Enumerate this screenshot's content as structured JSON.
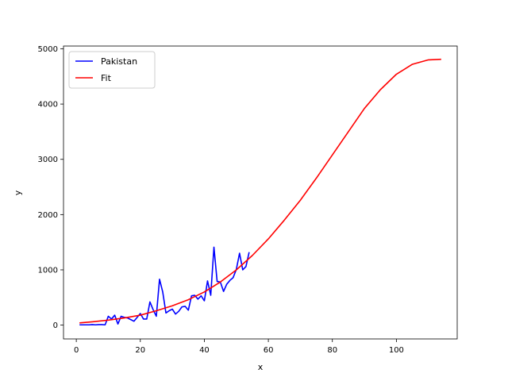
{
  "chart_data": {
    "type": "line",
    "title": "",
    "xlabel": "x",
    "ylabel": "y",
    "xlim": [
      -4,
      119
    ],
    "ylim": [
      -250,
      5050
    ],
    "xticks": [
      0,
      20,
      40,
      60,
      80,
      100
    ],
    "yticks": [
      0,
      1000,
      2000,
      3000,
      4000,
      5000
    ],
    "grid": false,
    "legend_position": "top-left",
    "series": [
      {
        "name": "Pakistan",
        "color": "#0000ff",
        "x": [
          1,
          2,
          3,
          4,
          5,
          6,
          7,
          8,
          9,
          10,
          11,
          12,
          13,
          14,
          15,
          16,
          17,
          18,
          19,
          20,
          21,
          22,
          23,
          24,
          25,
          26,
          27,
          28,
          29,
          30,
          31,
          32,
          33,
          34,
          35,
          36,
          37,
          38,
          39,
          40,
          41,
          42,
          43,
          44,
          45,
          46,
          47,
          48,
          49,
          50,
          51,
          52,
          53,
          54
        ],
        "y": [
          5,
          5,
          5,
          5,
          10,
          5,
          10,
          10,
          5,
          160,
          110,
          180,
          20,
          160,
          140,
          130,
          100,
          70,
          140,
          210,
          110,
          110,
          420,
          280,
          160,
          830,
          600,
          220,
          260,
          290,
          200,
          250,
          330,
          340,
          270,
          530,
          540,
          470,
          530,
          440,
          800,
          540,
          1410,
          790,
          780,
          610,
          740,
          810,
          860,
          1010,
          1300,
          1000,
          1060,
          1320
        ]
      },
      {
        "name": "Fit",
        "color": "#ff0000",
        "x": [
          1,
          5,
          10,
          15,
          20,
          25,
          30,
          35,
          40,
          45,
          50,
          55,
          60,
          65,
          70,
          75,
          80,
          85,
          90,
          95,
          100,
          105,
          110,
          114
        ],
        "y": [
          40,
          60,
          90,
          130,
          180,
          260,
          350,
          460,
          600,
          780,
          1000,
          1260,
          1560,
          1900,
          2260,
          2660,
          3080,
          3500,
          3920,
          4260,
          4540,
          4720,
          4800,
          4810
        ]
      }
    ]
  }
}
